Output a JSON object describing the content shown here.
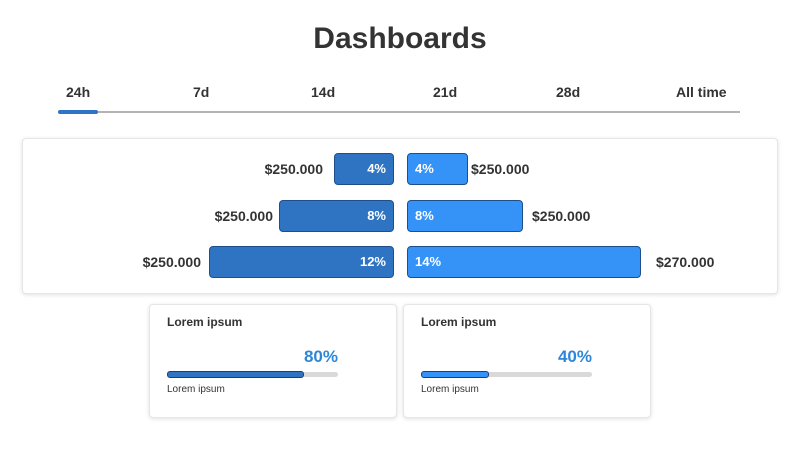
{
  "title": "Dashboards",
  "tabs": [
    {
      "label": "24h",
      "active": true
    },
    {
      "label": "7d",
      "active": false
    },
    {
      "label": "14d",
      "active": false
    },
    {
      "label": "21d",
      "active": false
    },
    {
      "label": "28d",
      "active": false
    },
    {
      "label": "All time",
      "active": false
    }
  ],
  "comparison_rows": [
    {
      "left": {
        "amount": "$250.000",
        "percent": "4%",
        "value": 4
      },
      "right": {
        "amount": "$250.000",
        "percent": "4%",
        "value": 4
      }
    },
    {
      "left": {
        "amount": "$250.000",
        "percent": "8%",
        "value": 8
      },
      "right": {
        "amount": "$250.000",
        "percent": "8%",
        "value": 8
      }
    },
    {
      "left": {
        "amount": "$250.000",
        "percent": "12%",
        "value": 12
      },
      "right": {
        "amount": "$270.000",
        "percent": "14%",
        "value": 14
      }
    }
  ],
  "cards": [
    {
      "title": "Lorem ipsum",
      "value": "80%",
      "progress": 0.8,
      "caption": "Lorem ipsum",
      "fill_color": "#2f74c3"
    },
    {
      "title": "Lorem ipsum",
      "value": "40%",
      "progress": 0.4,
      "caption": "Lorem ipsum",
      "fill_color": "#3592f7"
    }
  ],
  "colors": {
    "accent": "#2e75c8",
    "left_bar": "#2f74c3",
    "right_bar": "#3592f7",
    "card_value": "#2f86d8"
  }
}
